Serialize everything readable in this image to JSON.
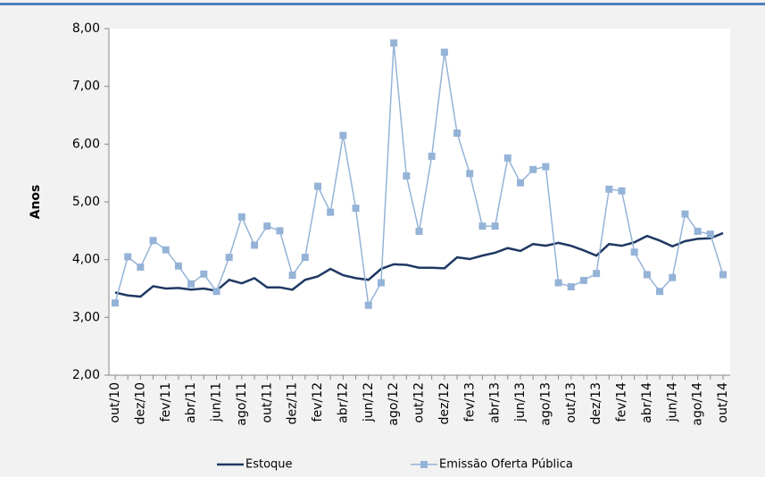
{
  "chart_data": {
    "type": "line",
    "y_label": "Anos",
    "categories": [
      "out/10",
      null,
      "dez/10",
      null,
      "fev/11",
      null,
      "abr/11",
      null,
      "jun/11",
      null,
      "ago/11",
      null,
      "out/11",
      null,
      "dez/11",
      null,
      "fev/12",
      null,
      "abr/12",
      null,
      "jun/12",
      null,
      "ago/12",
      null,
      "out/12",
      null,
      "dez/12",
      null,
      "fev/13",
      null,
      "abr/13",
      null,
      "jun/13",
      null,
      "ago/13",
      null,
      "out/13",
      null,
      "dez/13",
      null,
      "fev/14",
      null,
      "abr/14",
      null,
      "jun/14",
      null,
      "ago/14",
      null,
      "out/14"
    ],
    "series": [
      {
        "name": "Estoque",
        "color": "#1f3864",
        "marker": false,
        "values": [
          3.43,
          3.38,
          3.36,
          3.54,
          3.5,
          3.51,
          3.48,
          3.5,
          3.46,
          3.65,
          3.59,
          3.68,
          3.52,
          3.52,
          3.48,
          3.65,
          3.71,
          3.84,
          3.73,
          3.68,
          3.65,
          3.84,
          3.92,
          3.91,
          3.86,
          3.86,
          3.85,
          4.04,
          4.01,
          4.07,
          4.12,
          4.2,
          4.15,
          4.27,
          4.24,
          4.29,
          4.24,
          4.16,
          4.07,
          4.27,
          4.24,
          4.3,
          4.41,
          4.33,
          4.23,
          4.32,
          4.36,
          4.37,
          4.46
        ]
      },
      {
        "name": "Emissão Oferta Pública",
        "color": "#95b3d7",
        "marker": true,
        "values": [
          3.25,
          4.05,
          3.87,
          4.33,
          4.17,
          3.89,
          3.58,
          3.75,
          3.45,
          4.04,
          4.74,
          4.25,
          4.58,
          4.5,
          3.73,
          4.04,
          5.27,
          4.82,
          6.15,
          4.89,
          3.21,
          3.6,
          7.75,
          5.45,
          4.49,
          5.79,
          7.59,
          6.19,
          5.49,
          4.58,
          4.58,
          5.76,
          5.33,
          5.56,
          5.61,
          3.6,
          3.53,
          3.64,
          3.76,
          5.22,
          5.19,
          4.13,
          3.74,
          3.45,
          3.69,
          4.79,
          4.49,
          4.44,
          3.74
        ]
      }
    ],
    "ylim": [
      2,
      8
    ],
    "yticks": [
      {
        "value": 2,
        "label": "2,00"
      },
      {
        "value": 3,
        "label": "3,00"
      },
      {
        "value": 4,
        "label": "4,00"
      },
      {
        "value": 5,
        "label": "5,00"
      },
      {
        "value": 6,
        "label": "6,00"
      },
      {
        "value": 7,
        "label": "7,00"
      },
      {
        "value": 8,
        "label": "8,00"
      }
    ],
    "grid": false,
    "legend": "bottom"
  }
}
